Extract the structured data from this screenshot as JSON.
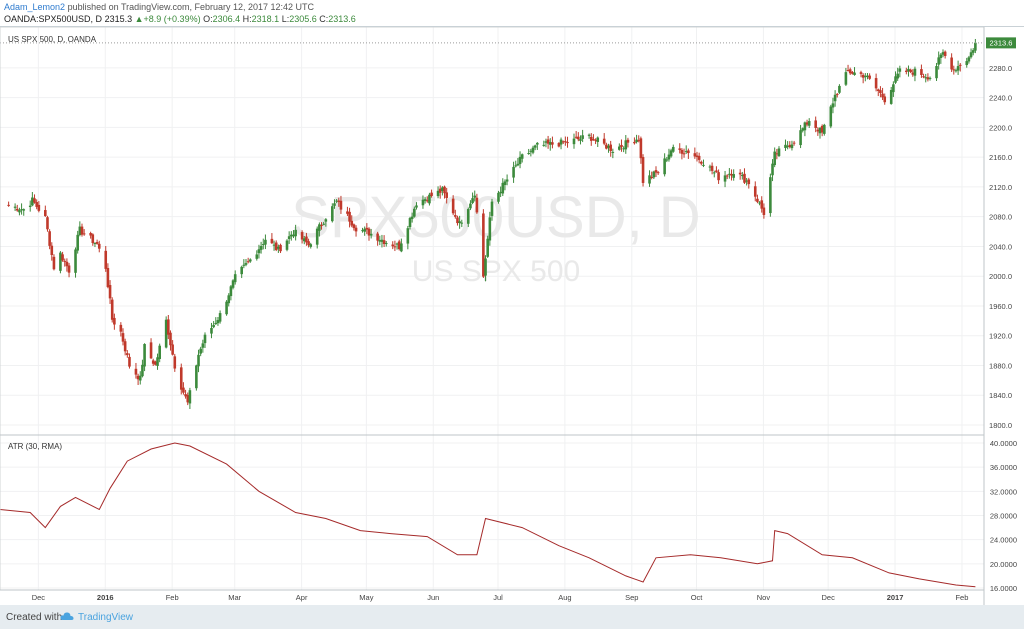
{
  "header": {
    "author": "Adam_Lemon2",
    "published_text": "published on TradingView.com, February 12, 2017 12:42 UTC",
    "symbol": "OANDA:SPX500USD, D",
    "last": "2315.3",
    "change": "+8.9 (+0.39%)",
    "o_label": "O:",
    "o_value": "2306.4",
    "h_label": "H:",
    "h_value": "2318.1",
    "l_label": "L:",
    "l_value": "2305.6",
    "c_label": "C:",
    "c_value": "2313.6"
  },
  "pane_title": "US SPX 500, D, OANDA",
  "watermark": {
    "line1": "SPX500USD, D",
    "line2": "US SPX 500"
  },
  "price_badge": "2313.6",
  "indicator_title": "ATR (30, RMA)",
  "footer": {
    "created": "Created with",
    "brand": "TradingView"
  },
  "colors": {
    "up": "#3c8a3c",
    "down": "#c0392b",
    "atr": "#a52a2a",
    "badge": "#3c8a3c"
  },
  "chart_data": [
    {
      "type": "candlestick",
      "title": "US SPX 500, D, OANDA",
      "ylim": [
        1780,
        2320
      ],
      "y_ticks": [
        "1800.0",
        "1840.0",
        "1880.0",
        "1920.0",
        "1960.0",
        "2000.0",
        "2040.0",
        "2080.0",
        "2120.0",
        "2160.0",
        "2200.0",
        "2240.0",
        "2280.0"
      ],
      "x_ticks": [
        "Dec",
        "2016",
        "Feb",
        "Mar",
        "Apr",
        "May",
        "Jun",
        "Jul",
        "Aug",
        "Sep",
        "Oct",
        "Nov",
        "Dec",
        "2017",
        "Feb"
      ],
      "last_value": 2313.6,
      "close_path": [
        [
          "2015-11-20",
          2095
        ],
        [
          "2015-11-27",
          2090
        ],
        [
          "2015-12-01",
          2102
        ],
        [
          "2015-12-07",
          2078
        ],
        [
          "2015-12-11",
          2012
        ],
        [
          "2015-12-14",
          2030
        ],
        [
          "2015-12-18",
          2008
        ],
        [
          "2015-12-23",
          2062
        ],
        [
          "2015-12-31",
          2043
        ],
        [
          "2016-01-04",
          2012
        ],
        [
          "2016-01-07",
          1942
        ],
        [
          "2016-01-11",
          1925
        ],
        [
          "2016-01-15",
          1880
        ],
        [
          "2016-01-20",
          1862
        ],
        [
          "2016-01-22",
          1905
        ],
        [
          "2016-01-27",
          1880
        ],
        [
          "2016-02-01",
          1940
        ],
        [
          "2016-02-05",
          1880
        ],
        [
          "2016-02-08",
          1852
        ],
        [
          "2016-02-11",
          1829
        ],
        [
          "2016-02-16",
          1895
        ],
        [
          "2016-02-19",
          1918
        ],
        [
          "2016-02-26",
          1948
        ],
        [
          "2016-03-04",
          1998
        ],
        [
          "2016-03-11",
          2022
        ],
        [
          "2016-03-18",
          2050
        ],
        [
          "2016-03-24",
          2035
        ],
        [
          "2016-03-31",
          2060
        ],
        [
          "2016-04-07",
          2042
        ],
        [
          "2016-04-15",
          2080
        ],
        [
          "2016-04-20",
          2100
        ],
        [
          "2016-04-29",
          2065
        ],
        [
          "2016-05-06",
          2057
        ],
        [
          "2016-05-13",
          2046
        ],
        [
          "2016-05-19",
          2040
        ],
        [
          "2016-05-27",
          2099
        ],
        [
          "2016-06-08",
          2115
        ],
        [
          "2016-06-16",
          2070
        ],
        [
          "2016-06-23",
          2113
        ],
        [
          "2016-06-27",
          2000
        ],
        [
          "2016-07-01",
          2100
        ],
        [
          "2016-07-08",
          2130
        ],
        [
          "2016-07-15",
          2160
        ],
        [
          "2016-07-22",
          2175
        ],
        [
          "2016-08-05",
          2180
        ],
        [
          "2016-08-15",
          2188
        ],
        [
          "2016-08-26",
          2170
        ],
        [
          "2016-09-07",
          2186
        ],
        [
          "2016-09-09",
          2128
        ],
        [
          "2016-09-16",
          2140
        ],
        [
          "2016-09-22",
          2170
        ],
        [
          "2016-09-30",
          2168
        ],
        [
          "2016-10-07",
          2154
        ],
        [
          "2016-10-14",
          2133
        ],
        [
          "2016-10-21",
          2141
        ],
        [
          "2016-10-28",
          2126
        ],
        [
          "2016-11-04",
          2085
        ],
        [
          "2016-11-09",
          2163
        ],
        [
          "2016-11-18",
          2182
        ],
        [
          "2016-11-25",
          2210
        ],
        [
          "2016-12-01",
          2192
        ],
        [
          "2016-12-07",
          2243
        ],
        [
          "2016-12-13",
          2275
        ],
        [
          "2016-12-21",
          2270
        ],
        [
          "2016-12-30",
          2238
        ],
        [
          "2017-01-06",
          2275
        ],
        [
          "2017-01-13",
          2275
        ],
        [
          "2017-01-20",
          2268
        ],
        [
          "2017-01-26",
          2300
        ],
        [
          "2017-01-31",
          2278
        ],
        [
          "2017-02-07",
          2294
        ],
        [
          "2017-02-10",
          2313
        ]
      ]
    },
    {
      "type": "line",
      "title": "ATR (30, RMA)",
      "ylim": [
        15,
        40.5
      ],
      "y_ticks": [
        "16.0000",
        "20.0000",
        "24.0000",
        "28.0000",
        "32.0000",
        "36.0000",
        "40.0000"
      ],
      "x": [
        "2015-11-16",
        "2015-11-30",
        "2015-12-07",
        "2015-12-14",
        "2015-12-21",
        "2016-01-01",
        "2016-01-06",
        "2016-01-14",
        "2016-01-25",
        "2016-02-05",
        "2016-02-12",
        "2016-02-29",
        "2016-03-15",
        "2016-04-01",
        "2016-04-15",
        "2016-05-01",
        "2016-05-15",
        "2016-06-01",
        "2016-06-15",
        "2016-06-24",
        "2016-06-28",
        "2016-07-15",
        "2016-08-01",
        "2016-08-15",
        "2016-09-01",
        "2016-09-09",
        "2016-09-15",
        "2016-10-01",
        "2016-10-15",
        "2016-11-01",
        "2016-11-08",
        "2016-11-09",
        "2016-11-15",
        "2016-12-01",
        "2016-12-15",
        "2017-01-01",
        "2017-01-15",
        "2017-02-01",
        "2017-02-10"
      ],
      "values": [
        29.0,
        28.5,
        26.0,
        29.5,
        31.0,
        29.0,
        32.5,
        37.0,
        39.0,
        40.0,
        39.5,
        36.5,
        32.0,
        28.5,
        27.5,
        25.5,
        25.0,
        24.5,
        21.5,
        21.5,
        27.5,
        26.0,
        23.0,
        21.0,
        18.0,
        17.0,
        21.0,
        21.5,
        21.0,
        20.0,
        20.5,
        25.5,
        25.0,
        21.5,
        21.0,
        18.5,
        17.5,
        16.5,
        16.2
      ]
    }
  ]
}
